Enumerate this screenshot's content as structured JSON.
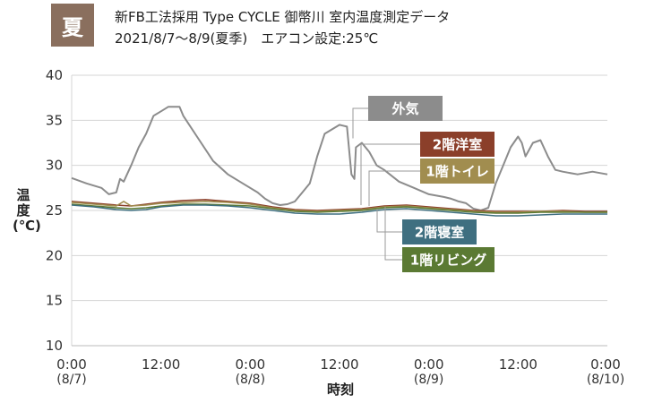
{
  "header": {
    "season": "夏",
    "title": "新FB工法採用 Type CYCLE 御幣川 室内温度測定データ",
    "subtitle": "2021/8/7～8/9(夏季)　エアコン設定:25℃"
  },
  "colors": {
    "outdoor": "#8c8c8c",
    "western": "#8b3f2a",
    "toilet": "#a18d4f",
    "bedroom": "#3f6f80",
    "living": "#5b7a33",
    "grid": "#d6d6d6",
    "badge": "#8a6f5e"
  },
  "chart_data": {
    "type": "line",
    "xlabel": "時刻",
    "ylabel": "温度(℃)",
    "ylim": [
      10,
      40
    ],
    "yticks": [
      "10",
      "15",
      "20",
      "25",
      "30",
      "35",
      "40"
    ],
    "xlim": [
      0,
      72
    ],
    "xticks": [
      {
        "x": 0,
        "line1": "0:00",
        "line2": "(8/7)"
      },
      {
        "x": 12,
        "line1": "12:00",
        "line2": ""
      },
      {
        "x": 24,
        "line1": "0:00",
        "line2": "(8/8)"
      },
      {
        "x": 36,
        "line1": "12:00",
        "line2": ""
      },
      {
        "x": 48,
        "line1": "0:00",
        "line2": "(8/9)"
      },
      {
        "x": 60,
        "line1": "12:00",
        "line2": ""
      },
      {
        "x": 72,
        "line1": "0:00",
        "line2": "(8/10)"
      }
    ],
    "series": [
      {
        "name": "外気",
        "key": "outdoor",
        "points": [
          [
            0,
            28.6
          ],
          [
            2,
            28.0
          ],
          [
            4,
            27.5
          ],
          [
            5,
            26.8
          ],
          [
            6,
            27.0
          ],
          [
            6.5,
            28.5
          ],
          [
            7,
            28.2
          ],
          [
            8,
            30
          ],
          [
            9,
            32
          ],
          [
            10,
            33.5
          ],
          [
            11,
            35.5
          ],
          [
            12,
            36.0
          ],
          [
            13,
            36.5
          ],
          [
            14.5,
            36.5
          ],
          [
            15,
            35.5
          ],
          [
            17,
            33
          ],
          [
            19,
            30.5
          ],
          [
            21,
            29
          ],
          [
            23,
            28
          ],
          [
            25,
            27
          ],
          [
            26,
            26.3
          ],
          [
            27,
            25.8
          ],
          [
            28,
            25.6
          ],
          [
            29,
            25.7
          ],
          [
            30,
            26.0
          ],
          [
            31,
            27.0
          ],
          [
            32,
            28
          ],
          [
            33,
            31
          ],
          [
            34,
            33.5
          ],
          [
            35,
            34.0
          ],
          [
            36,
            34.5
          ],
          [
            37,
            34.3
          ],
          [
            37.6,
            29
          ],
          [
            38,
            28.5
          ],
          [
            38.2,
            32
          ],
          [
            39,
            32.5
          ],
          [
            40,
            31.5
          ],
          [
            41,
            30
          ],
          [
            42,
            29.5
          ],
          [
            44,
            28.2
          ],
          [
            46,
            27.5
          ],
          [
            48,
            26.8
          ],
          [
            50,
            26.5
          ],
          [
            51,
            26.3
          ],
          [
            52,
            26.0
          ],
          [
            53,
            25.8
          ],
          [
            54,
            25.2
          ],
          [
            55,
            25.0
          ],
          [
            56,
            25.3
          ],
          [
            57,
            28
          ],
          [
            58,
            30
          ],
          [
            59,
            32
          ],
          [
            60,
            33.2
          ],
          [
            60.5,
            32.5
          ],
          [
            61,
            31.0
          ],
          [
            62,
            32.5
          ],
          [
            63,
            32.8
          ],
          [
            64,
            31.0
          ],
          [
            65,
            29.5
          ],
          [
            66,
            29.3
          ],
          [
            68,
            29.0
          ],
          [
            70,
            29.3
          ],
          [
            72,
            29.0
          ]
        ]
      },
      {
        "name": "2階洋室",
        "key": "western",
        "points": [
          [
            0,
            26.0
          ],
          [
            3,
            25.8
          ],
          [
            6,
            25.6
          ],
          [
            8,
            25.5
          ],
          [
            10,
            25.7
          ],
          [
            12,
            25.9
          ],
          [
            15,
            26.1
          ],
          [
            18,
            26.2
          ],
          [
            21,
            26.0
          ],
          [
            24,
            25.8
          ],
          [
            27,
            25.4
          ],
          [
            30,
            25.1
          ],
          [
            33,
            25.0
          ],
          [
            36,
            25.1
          ],
          [
            39,
            25.2
          ],
          [
            42,
            25.5
          ],
          [
            45,
            25.6
          ],
          [
            48,
            25.4
          ],
          [
            51,
            25.2
          ],
          [
            54,
            25.0
          ],
          [
            57,
            24.9
          ],
          [
            60,
            24.9
          ],
          [
            63,
            24.9
          ],
          [
            66,
            25.0
          ],
          [
            69,
            24.9
          ],
          [
            72,
            24.9
          ]
        ]
      },
      {
        "name": "1階トイレ",
        "key": "toilet",
        "points": [
          [
            0,
            25.9
          ],
          [
            3,
            25.7
          ],
          [
            6,
            25.5
          ],
          [
            7,
            26.0
          ],
          [
            8,
            25.5
          ],
          [
            10,
            25.6
          ],
          [
            12,
            25.8
          ],
          [
            15,
            25.9
          ],
          [
            18,
            26.0
          ],
          [
            21,
            25.9
          ],
          [
            24,
            25.7
          ],
          [
            27,
            25.3
          ],
          [
            30,
            25.0
          ],
          [
            33,
            24.9
          ],
          [
            36,
            25.0
          ],
          [
            39,
            25.1
          ],
          [
            42,
            25.4
          ],
          [
            45,
            25.5
          ],
          [
            48,
            25.3
          ],
          [
            51,
            25.1
          ],
          [
            54,
            24.9
          ],
          [
            57,
            24.8
          ],
          [
            60,
            24.8
          ],
          [
            63,
            24.9
          ],
          [
            66,
            24.9
          ],
          [
            69,
            24.8
          ],
          [
            72,
            24.8
          ]
        ]
      },
      {
        "name": "2階寝室",
        "key": "bedroom",
        "points": [
          [
            0,
            25.6
          ],
          [
            3,
            25.4
          ],
          [
            6,
            25.1
          ],
          [
            8,
            25.0
          ],
          [
            10,
            25.1
          ],
          [
            12,
            25.4
          ],
          [
            15,
            25.6
          ],
          [
            18,
            25.6
          ],
          [
            21,
            25.5
          ],
          [
            24,
            25.3
          ],
          [
            27,
            25.0
          ],
          [
            30,
            24.7
          ],
          [
            33,
            24.6
          ],
          [
            36,
            24.6
          ],
          [
            39,
            24.8
          ],
          [
            42,
            25.1
          ],
          [
            45,
            25.2
          ],
          [
            48,
            25.0
          ],
          [
            51,
            24.8
          ],
          [
            54,
            24.6
          ],
          [
            57,
            24.4
          ],
          [
            60,
            24.4
          ],
          [
            63,
            24.5
          ],
          [
            66,
            24.6
          ],
          [
            69,
            24.6
          ],
          [
            72,
            24.6
          ]
        ]
      },
      {
        "name": "1階リビング",
        "key": "living",
        "points": [
          [
            0,
            25.7
          ],
          [
            3,
            25.5
          ],
          [
            6,
            25.3
          ],
          [
            8,
            25.2
          ],
          [
            10,
            25.3
          ],
          [
            12,
            25.5
          ],
          [
            15,
            25.7
          ],
          [
            18,
            25.7
          ],
          [
            21,
            25.6
          ],
          [
            24,
            25.5
          ],
          [
            27,
            25.2
          ],
          [
            30,
            24.9
          ],
          [
            33,
            24.8
          ],
          [
            36,
            24.9
          ],
          [
            39,
            25.0
          ],
          [
            42,
            25.3
          ],
          [
            45,
            25.4
          ],
          [
            48,
            25.2
          ],
          [
            51,
            25.0
          ],
          [
            54,
            24.8
          ],
          [
            57,
            24.7
          ],
          [
            60,
            24.7
          ],
          [
            63,
            24.8
          ],
          [
            66,
            24.8
          ],
          [
            69,
            24.8
          ],
          [
            72,
            24.8
          ]
        ]
      }
    ]
  }
}
